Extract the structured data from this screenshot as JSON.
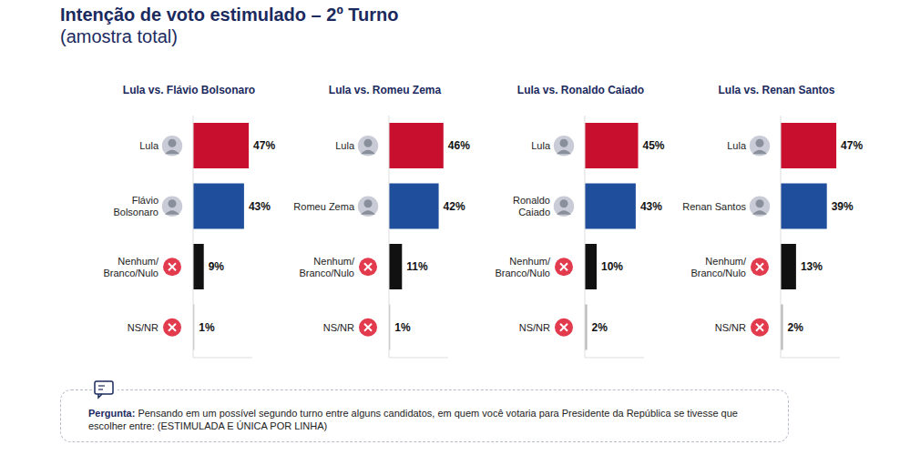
{
  "title": "Intenção de voto estimulado – 2º Turno",
  "subtitle": "(amostra total)",
  "note": {
    "label": "Pergunta:",
    "text": "Pensando em um possível segundo turno entre alguns candidatos, em quem você votaria para Presidente da República se tivesse que escolher entre: (ESTIMULADA E ÚNICA POR LINHA)"
  },
  "chart_data": [
    {
      "type": "bar",
      "title": "Lula vs. Flávio Bolsonaro",
      "orientation": "horizontal",
      "categories": [
        "Lula",
        "Flávio Bolsonaro",
        "Nenhum/Branco/Nulo",
        "NS/NR"
      ],
      "values": [
        47,
        43,
        9,
        1
      ],
      "value_labels": [
        "47%",
        "43%",
        "9%",
        "1%"
      ],
      "colors": [
        "#c8102e",
        "#1f4e9c",
        "#111111",
        "#bbbbbb"
      ],
      "xlim": [
        0,
        50
      ],
      "data_labels": true,
      "tick_labels": "y"
    },
    {
      "type": "bar",
      "title": "Lula vs. Romeu Zema",
      "orientation": "horizontal",
      "categories": [
        "Lula",
        "Romeu Zema",
        "Nenhum/Branco/Nulo",
        "NS/NR"
      ],
      "values": [
        46,
        42,
        11,
        1
      ],
      "value_labels": [
        "46%",
        "42%",
        "11%",
        "1%"
      ],
      "colors": [
        "#c8102e",
        "#1f4e9c",
        "#111111",
        "#bbbbbb"
      ],
      "xlim": [
        0,
        50
      ],
      "data_labels": true,
      "tick_labels": "y"
    },
    {
      "type": "bar",
      "title": "Lula vs. Ronaldo Caiado",
      "orientation": "horizontal",
      "categories": [
        "Lula",
        "Ronaldo Caiado",
        "Nenhum/Branco/Nulo",
        "NS/NR"
      ],
      "values": [
        45,
        43,
        10,
        2
      ],
      "value_labels": [
        "45%",
        "43%",
        "10%",
        "2%"
      ],
      "colors": [
        "#c8102e",
        "#1f4e9c",
        "#111111",
        "#bbbbbb"
      ],
      "xlim": [
        0,
        50
      ],
      "data_labels": true,
      "tick_labels": "y"
    },
    {
      "type": "bar",
      "title": "Lula vs. Renan Santos",
      "orientation": "horizontal",
      "categories": [
        "Lula",
        "Renan Santos",
        "Nenhum/Branco/Nulo",
        "NS/NR"
      ],
      "values": [
        47,
        39,
        13,
        2
      ],
      "value_labels": [
        "47%",
        "39%",
        "13%",
        "2%"
      ],
      "colors": [
        "#c8102e",
        "#1f4e9c",
        "#111111",
        "#bbbbbb"
      ],
      "xlim": [
        0,
        50
      ],
      "data_labels": true,
      "tick_labels": "y"
    }
  ]
}
